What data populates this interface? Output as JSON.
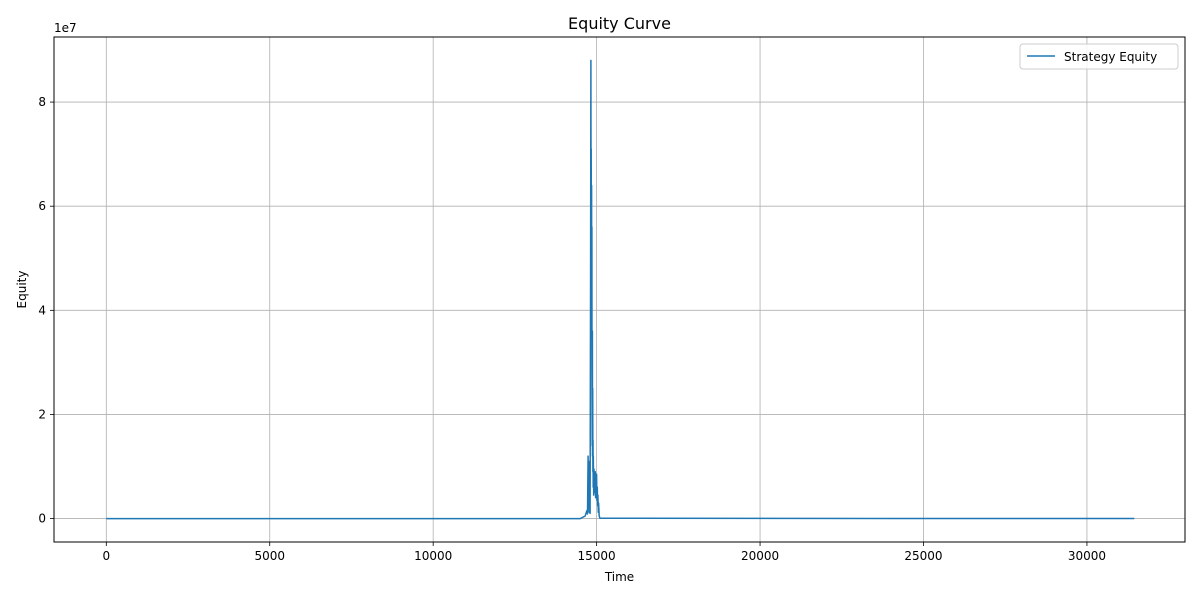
{
  "chart_data": {
    "type": "line",
    "title": "Equity Curve",
    "xlabel": "Time",
    "ylabel": "Equity",
    "y_offset_text": "1e7",
    "xlim": [
      -1600,
      33000
    ],
    "ylim": [
      -4500000,
      92500000
    ],
    "x_ticks": [
      0,
      5000,
      10000,
      15000,
      20000,
      25000,
      30000
    ],
    "x_tick_labels": [
      "0",
      "5000",
      "10000",
      "15000",
      "20000",
      "25000",
      "30000"
    ],
    "y_ticks": [
      0,
      20000000,
      40000000,
      60000000,
      80000000
    ],
    "y_tick_labels": [
      "0",
      "2",
      "4",
      "6",
      "8"
    ],
    "grid": true,
    "legend_position": "top-right",
    "series": [
      {
        "name": "Strategy Equity",
        "color": "#1f77b4",
        "x": [
          0,
          14000,
          14500,
          14650,
          14700,
          14720,
          14740,
          14750,
          14760,
          14770,
          14780,
          14790,
          14800,
          14810,
          14815,
          14820,
          14825,
          14830,
          14835,
          14840,
          14845,
          14850,
          14855,
          14860,
          14865,
          14870,
          14875,
          14880,
          14885,
          14890,
          14895,
          14900,
          14910,
          14920,
          14930,
          14940,
          14950,
          14960,
          14970,
          14980,
          14990,
          15000,
          15010,
          15020,
          15030,
          15040,
          15050,
          15060,
          15080,
          15100,
          15150,
          15200,
          16000,
          20000,
          25000,
          31450
        ],
        "y": [
          0,
          0,
          0,
          500000,
          1500000,
          900000,
          12000000,
          3000000,
          11000000,
          1200000,
          4000000,
          1500000,
          1000000,
          30000000,
          48000000,
          62000000,
          88000000,
          45000000,
          71000000,
          52000000,
          64000000,
          35000000,
          56000000,
          28000000,
          14000000,
          36000000,
          12000000,
          25000000,
          9000000,
          15000000,
          6000000,
          12000000,
          4500000,
          9500000,
          6000000,
          8500000,
          5000000,
          9000000,
          4000000,
          7500000,
          6000000,
          8500000,
          3500000,
          6000000,
          2500000,
          4500000,
          1200000,
          3000000,
          500000,
          100000,
          50000,
          80000,
          50000,
          30000,
          10000,
          5000
        ]
      }
    ]
  }
}
